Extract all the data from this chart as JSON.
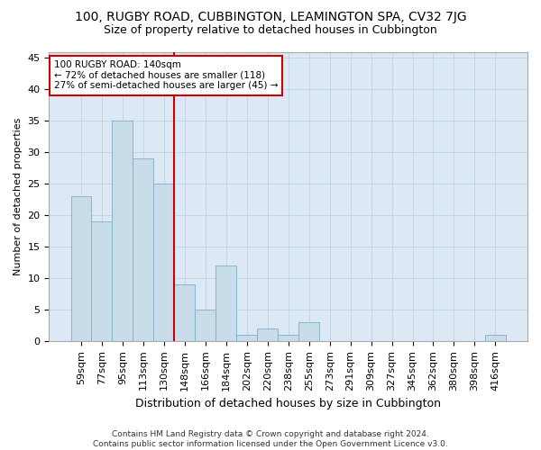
{
  "title": "100, RUGBY ROAD, CUBBINGTON, LEAMINGTON SPA, CV32 7JG",
  "subtitle": "Size of property relative to detached houses in Cubbington",
  "xlabel": "Distribution of detached houses by size in Cubbington",
  "ylabel": "Number of detached properties",
  "categories": [
    "59sqm",
    "77sqm",
    "95sqm",
    "113sqm",
    "130sqm",
    "148sqm",
    "166sqm",
    "184sqm",
    "202sqm",
    "220sqm",
    "238sqm",
    "255sqm",
    "273sqm",
    "291sqm",
    "309sqm",
    "327sqm",
    "345sqm",
    "362sqm",
    "380sqm",
    "398sqm",
    "416sqm"
  ],
  "values": [
    23,
    19,
    35,
    29,
    25,
    9,
    5,
    12,
    1,
    2,
    1,
    3,
    0,
    0,
    0,
    0,
    0,
    0,
    0,
    0,
    1
  ],
  "bar_color": "#c9dcea",
  "bar_edge_color": "#7bafc8",
  "vline_x_index": 4.5,
  "vline_color": "#cc0000",
  "annotation_text_line1": "100 RUGBY ROAD: 140sqm",
  "annotation_text_line2": "← 72% of detached houses are smaller (118)",
  "annotation_text_line3": "27% of semi-detached houses are larger (45) →",
  "annotation_box_color": "#ffffff",
  "annotation_box_edge": "#cc0000",
  "ylim": [
    0,
    46
  ],
  "yticks": [
    0,
    5,
    10,
    15,
    20,
    25,
    30,
    35,
    40,
    45
  ],
  "footnote_line1": "Contains HM Land Registry data © Crown copyright and database right 2024.",
  "footnote_line2": "Contains public sector information licensed under the Open Government Licence v3.0.",
  "background_color": "#ffffff",
  "plot_bg_color": "#dce9f5",
  "grid_color": "#b8cfe0",
  "title_fontsize": 10,
  "subtitle_fontsize": 9,
  "xlabel_fontsize": 9,
  "ylabel_fontsize": 8,
  "tick_fontsize": 8,
  "annot_fontsize": 7.5
}
